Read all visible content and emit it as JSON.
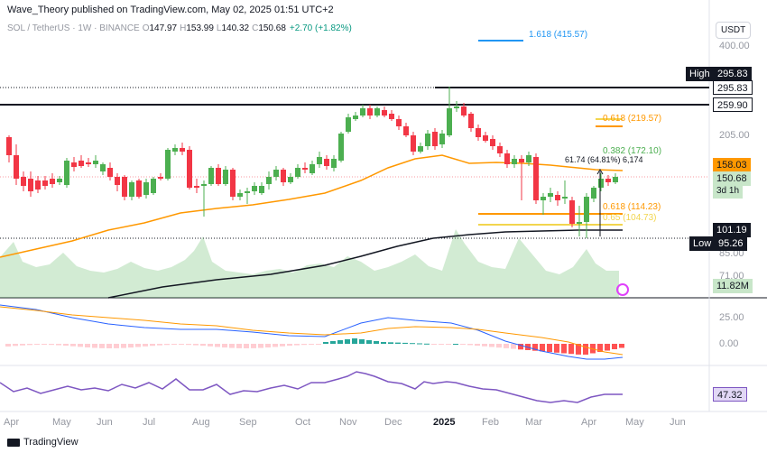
{
  "header": {
    "publish_line": "Wave_Theory published on TradingView.com, May 02, 2025 01:51 UTC+2",
    "symbol": "SOL / TetherUS · 1W · BINANCE",
    "open_label": "O",
    "open": "147.97",
    "high_label": "H",
    "high": "153.99",
    "low_label": "L",
    "low": "140.32",
    "close_label": "C",
    "close": "150.68",
    "change": "+2.70 (+1.82%)"
  },
  "currency": "USDT",
  "price_axis": [
    "400.00",
    "205.00",
    "85.00",
    "71.00"
  ],
  "price_tags": {
    "high_label": "High",
    "high_value": "295.83",
    "line_295": "295.83",
    "line_259": "259.90",
    "ema_orange": "158.03",
    "last_price": "150.68",
    "countdown": "3d 1h",
    "ema_black": "101.19",
    "low_label": "Low",
    "low_value": "95.26",
    "volume": "11.82M"
  },
  "fib_levels": [
    {
      "text": "1.618 (415.57)",
      "color": "blue"
    },
    {
      "text": "0.618 (219.57)",
      "color": "orange"
    },
    {
      "text": "0.382 (172.10)",
      "color": "green"
    },
    {
      "text": "0.618 (114.23)",
      "color": "orange"
    },
    {
      "text": "0.65 (104.73)",
      "color": "yellow"
    }
  ],
  "measure_text": "61.74 (64.81%) 6,174",
  "macd": {
    "axis": [
      "25.00",
      "0.00"
    ]
  },
  "rsi": {
    "value": "47.32"
  },
  "time_axis": [
    "Apr",
    "May",
    "Jun",
    "Jul",
    "Aug",
    "Sep",
    "Oct",
    "Nov",
    "Dec",
    "2025",
    "Feb",
    "Mar",
    "Apr",
    "May",
    "Jun"
  ],
  "footer": {
    "brand": "TradingView"
  },
  "colors": {
    "up": "#4caf50",
    "down": "#f23645",
    "ema_orange": "#ff9800",
    "ema_black": "#131722",
    "macd": "#2962ff",
    "signal": "#ff9800",
    "rsi": "#7e57c2"
  }
}
